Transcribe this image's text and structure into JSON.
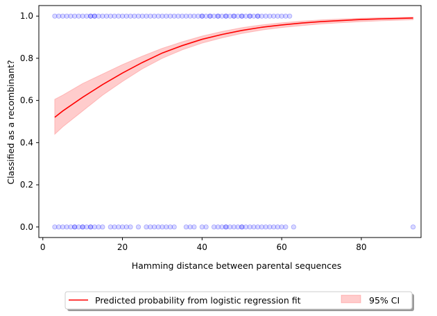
{
  "chart_data": {
    "type": "scatter",
    "xlabel": "Hamming distance between parental sequences",
    "ylabel": "Classified as a recombinant?",
    "xlim": [
      -1,
      95
    ],
    "ylim": [
      -0.05,
      1.05
    ],
    "xticks": [
      0,
      20,
      40,
      60,
      80
    ],
    "yticks": [
      0.0,
      0.2,
      0.4,
      0.6,
      0.8,
      1.0
    ],
    "xtick_labels": [
      "0",
      "20",
      "40",
      "60",
      "80"
    ],
    "ytick_labels": [
      "0.0",
      "0.2",
      "0.4",
      "0.6",
      "0.8",
      "1.0"
    ],
    "grid": false,
    "legend_placement": "below-center",
    "colors": {
      "points": "#0000ff",
      "fit_line": "#ff0000",
      "ci_band": "#ff9999"
    },
    "legend": {
      "fit_label": "Predicted probability from logistic regression fit",
      "ci_label": "95% CI"
    },
    "points_y1": [
      3,
      4,
      5,
      6,
      7,
      8,
      9,
      10,
      11,
      12,
      12,
      13,
      13,
      14,
      15,
      16,
      17,
      18,
      19,
      20,
      21,
      22,
      23,
      24,
      25,
      26,
      27,
      28,
      29,
      30,
      31,
      32,
      33,
      34,
      35,
      36,
      37,
      38,
      39,
      40,
      40,
      41,
      42,
      42,
      43,
      44,
      44,
      45,
      46,
      46,
      47,
      48,
      48,
      49,
      50,
      50,
      51,
      52,
      52,
      53,
      54,
      54,
      55,
      56,
      57,
      58,
      59,
      60,
      61,
      62
    ],
    "points_y0": [
      3,
      4,
      5,
      6,
      7,
      8,
      8,
      9,
      10,
      10,
      11,
      12,
      12,
      13,
      14,
      15,
      17,
      18,
      19,
      20,
      21,
      22,
      24,
      26,
      27,
      28,
      29,
      30,
      31,
      32,
      33,
      36,
      37,
      38,
      40,
      41,
      43,
      44,
      45,
      46,
      46,
      47,
      48,
      49,
      50,
      50,
      51,
      52,
      53,
      54,
      55,
      56,
      57,
      58,
      59,
      60,
      61,
      63,
      93
    ],
    "fit_curve": {
      "x": [
        3,
        5,
        10,
        15,
        20,
        25,
        30,
        35,
        40,
        45,
        50,
        55,
        60,
        65,
        70,
        75,
        80,
        85,
        93
      ],
      "y": [
        0.52,
        0.55,
        0.615,
        0.675,
        0.73,
        0.78,
        0.825,
        0.86,
        0.89,
        0.913,
        0.932,
        0.947,
        0.958,
        0.967,
        0.974,
        0.979,
        0.984,
        0.987,
        0.991
      ],
      "ci_lower": [
        0.44,
        0.475,
        0.55,
        0.625,
        0.69,
        0.75,
        0.8,
        0.84,
        0.872,
        0.897,
        0.918,
        0.934,
        0.946,
        0.955,
        0.963,
        0.969,
        0.974,
        0.978,
        0.983
      ],
      "ci_upper": [
        0.605,
        0.625,
        0.68,
        0.725,
        0.77,
        0.81,
        0.847,
        0.878,
        0.905,
        0.927,
        0.945,
        0.958,
        0.968,
        0.976,
        0.982,
        0.986,
        0.99,
        0.992,
        0.995
      ]
    }
  }
}
